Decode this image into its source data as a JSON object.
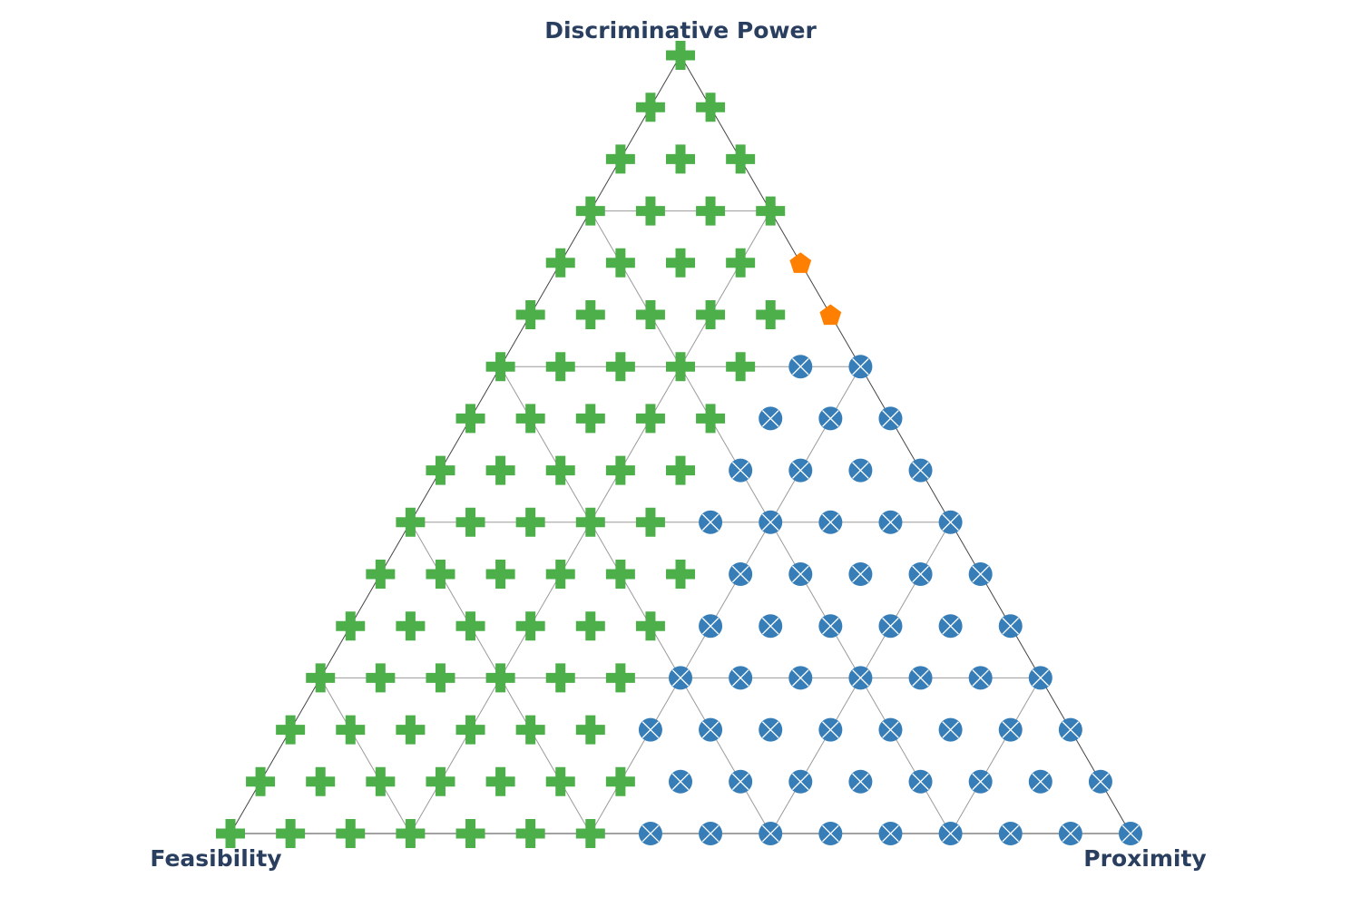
{
  "chart_data": {
    "type": "scatter",
    "subtype": "ternary",
    "title": "",
    "axes": {
      "top": "Discriminative Power",
      "left": "Feasibility",
      "right": "Proximity"
    },
    "grid_steps": 15,
    "grid_line_every": 3,
    "grid": true,
    "legend": "none",
    "point_encoding": "[top, left, right] in grid steps (sum = 15)",
    "series": [
      {
        "marker": "cross",
        "color": "#4daf4a",
        "points": [
          [
            15,
            0,
            0
          ],
          [
            14,
            1,
            0
          ],
          [
            14,
            0,
            1
          ],
          [
            13,
            2,
            0
          ],
          [
            13,
            1,
            1
          ],
          [
            13,
            0,
            2
          ],
          [
            12,
            3,
            0
          ],
          [
            12,
            2,
            1
          ],
          [
            12,
            1,
            2
          ],
          [
            12,
            0,
            3
          ],
          [
            11,
            4,
            0
          ],
          [
            11,
            3,
            1
          ],
          [
            11,
            2,
            2
          ],
          [
            11,
            1,
            3
          ],
          [
            10,
            5,
            0
          ],
          [
            10,
            4,
            1
          ],
          [
            10,
            3,
            2
          ],
          [
            10,
            2,
            3
          ],
          [
            10,
            1,
            4
          ],
          [
            9,
            6,
            0
          ],
          [
            9,
            5,
            1
          ],
          [
            9,
            4,
            2
          ],
          [
            9,
            3,
            3
          ],
          [
            9,
            2,
            4
          ],
          [
            8,
            7,
            0
          ],
          [
            8,
            6,
            1
          ],
          [
            8,
            5,
            2
          ],
          [
            8,
            4,
            3
          ],
          [
            8,
            3,
            4
          ],
          [
            7,
            8,
            0
          ],
          [
            7,
            7,
            1
          ],
          [
            7,
            6,
            2
          ],
          [
            7,
            5,
            3
          ],
          [
            7,
            4,
            4
          ],
          [
            6,
            9,
            0
          ],
          [
            6,
            8,
            1
          ],
          [
            6,
            7,
            2
          ],
          [
            6,
            6,
            3
          ],
          [
            6,
            5,
            4
          ],
          [
            5,
            10,
            0
          ],
          [
            5,
            9,
            1
          ],
          [
            5,
            8,
            2
          ],
          [
            5,
            7,
            3
          ],
          [
            5,
            6,
            4
          ],
          [
            5,
            5,
            5
          ],
          [
            4,
            11,
            0
          ],
          [
            4,
            10,
            1
          ],
          [
            4,
            9,
            2
          ],
          [
            4,
            8,
            3
          ],
          [
            4,
            7,
            4
          ],
          [
            4,
            6,
            5
          ],
          [
            3,
            12,
            0
          ],
          [
            3,
            11,
            1
          ],
          [
            3,
            10,
            2
          ],
          [
            3,
            9,
            3
          ],
          [
            3,
            8,
            4
          ],
          [
            3,
            7,
            5
          ],
          [
            2,
            13,
            0
          ],
          [
            2,
            12,
            1
          ],
          [
            2,
            11,
            2
          ],
          [
            2,
            10,
            3
          ],
          [
            2,
            9,
            4
          ],
          [
            2,
            8,
            5
          ],
          [
            1,
            14,
            0
          ],
          [
            1,
            13,
            1
          ],
          [
            1,
            12,
            2
          ],
          [
            1,
            11,
            3
          ],
          [
            1,
            10,
            4
          ],
          [
            1,
            9,
            5
          ],
          [
            1,
            8,
            6
          ],
          [
            0,
            15,
            0
          ],
          [
            0,
            14,
            1
          ],
          [
            0,
            13,
            2
          ],
          [
            0,
            12,
            3
          ],
          [
            0,
            11,
            4
          ],
          [
            0,
            10,
            5
          ],
          [
            0,
            9,
            6
          ]
        ]
      },
      {
        "marker": "pentagon",
        "color": "#ff7f00",
        "points": [
          [
            11,
            0,
            4
          ],
          [
            10,
            0,
            5
          ]
        ]
      },
      {
        "marker": "circle-x",
        "color": "#377eb8",
        "points": [
          [
            9,
            1,
            5
          ],
          [
            9,
            0,
            6
          ],
          [
            8,
            2,
            5
          ],
          [
            8,
            1,
            6
          ],
          [
            8,
            0,
            7
          ],
          [
            7,
            3,
            5
          ],
          [
            7,
            2,
            6
          ],
          [
            7,
            1,
            7
          ],
          [
            7,
            0,
            8
          ],
          [
            6,
            4,
            5
          ],
          [
            6,
            3,
            6
          ],
          [
            6,
            2,
            7
          ],
          [
            6,
            1,
            8
          ],
          [
            6,
            0,
            9
          ],
          [
            5,
            4,
            6
          ],
          [
            5,
            3,
            7
          ],
          [
            5,
            2,
            8
          ],
          [
            5,
            1,
            9
          ],
          [
            5,
            0,
            10
          ],
          [
            4,
            5,
            6
          ],
          [
            4,
            4,
            7
          ],
          [
            4,
            3,
            8
          ],
          [
            4,
            2,
            9
          ],
          [
            4,
            1,
            10
          ],
          [
            4,
            0,
            11
          ],
          [
            3,
            6,
            6
          ],
          [
            3,
            5,
            7
          ],
          [
            3,
            4,
            8
          ],
          [
            3,
            3,
            9
          ],
          [
            3,
            2,
            10
          ],
          [
            3,
            1,
            11
          ],
          [
            3,
            0,
            12
          ],
          [
            2,
            7,
            6
          ],
          [
            2,
            6,
            7
          ],
          [
            2,
            5,
            8
          ],
          [
            2,
            4,
            9
          ],
          [
            2,
            3,
            10
          ],
          [
            2,
            2,
            11
          ],
          [
            2,
            1,
            12
          ],
          [
            2,
            0,
            13
          ],
          [
            1,
            7,
            7
          ],
          [
            1,
            6,
            8
          ],
          [
            1,
            5,
            9
          ],
          [
            1,
            4,
            10
          ],
          [
            1,
            3,
            11
          ],
          [
            1,
            2,
            12
          ],
          [
            1,
            1,
            13
          ],
          [
            1,
            0,
            14
          ],
          [
            0,
            8,
            7
          ],
          [
            0,
            7,
            8
          ],
          [
            0,
            6,
            9
          ],
          [
            0,
            5,
            10
          ],
          [
            0,
            4,
            11
          ],
          [
            0,
            3,
            12
          ],
          [
            0,
            2,
            13
          ],
          [
            0,
            1,
            14
          ],
          [
            0,
            0,
            15
          ]
        ]
      }
    ]
  }
}
